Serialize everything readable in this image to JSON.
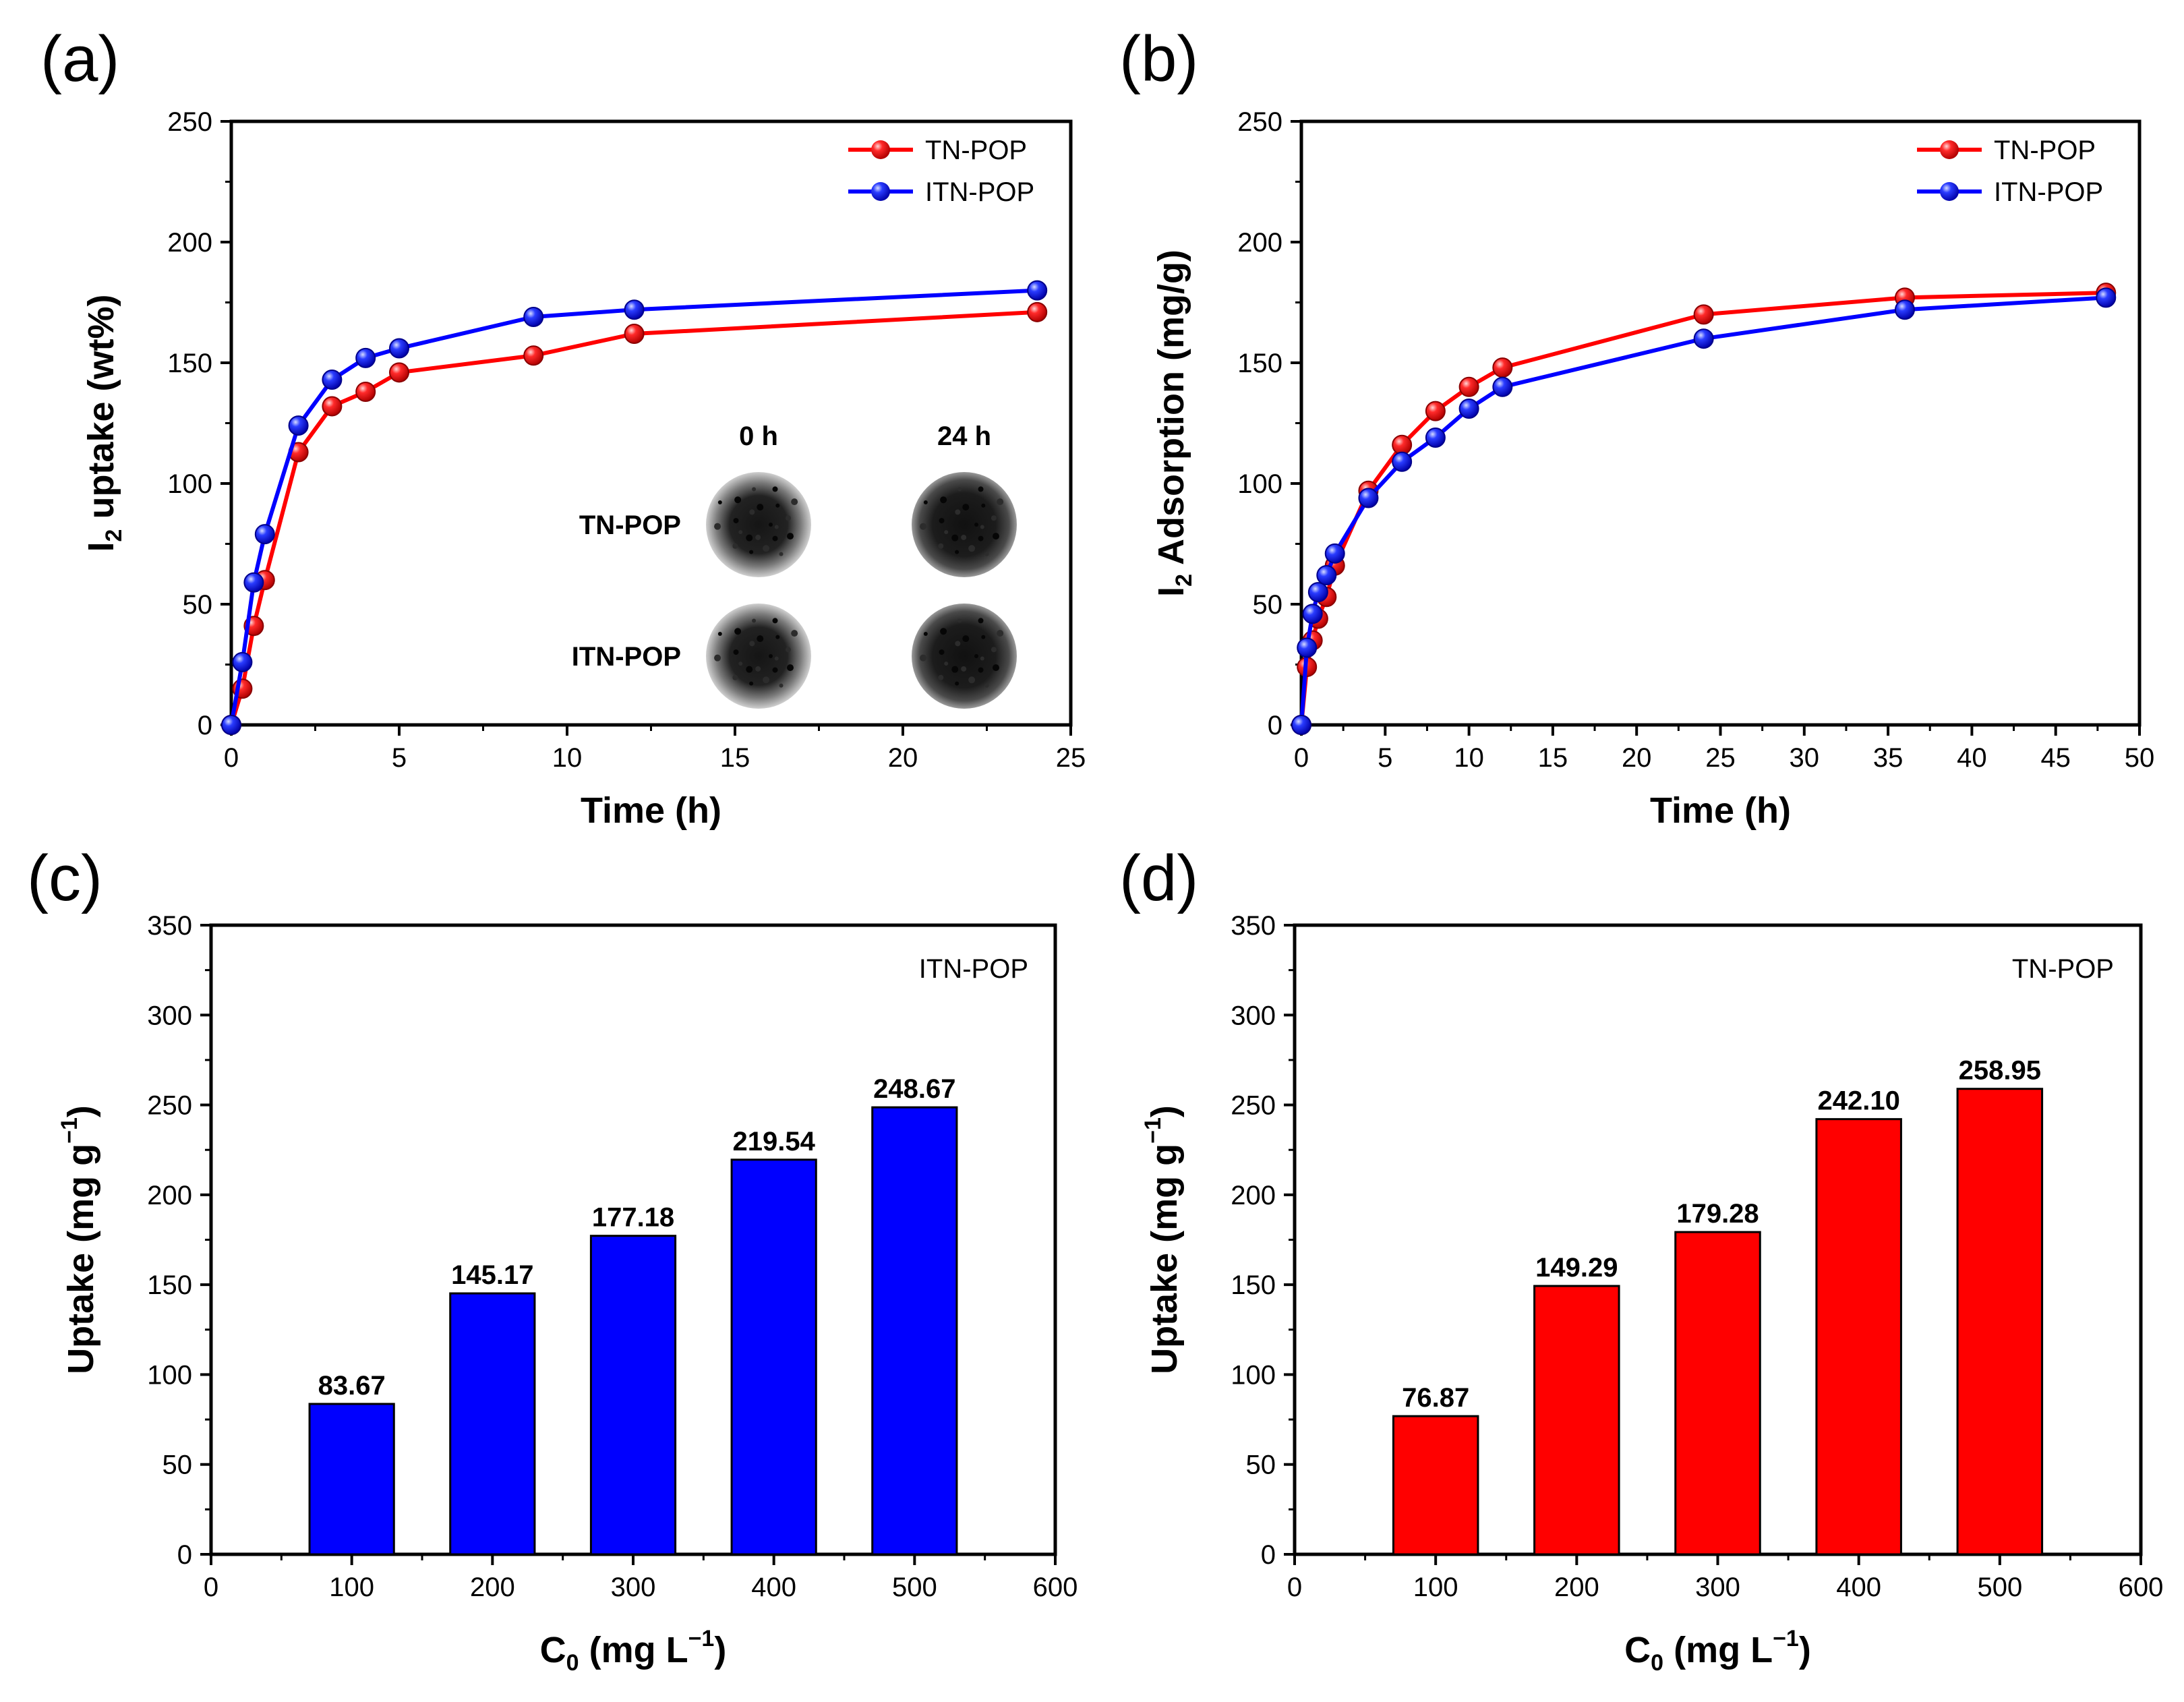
{
  "chart_data": [
    {
      "panel": "(a)",
      "type": "line",
      "xlabel": "Time (h)",
      "ylabel": "I",
      "ylabel_sub": "2",
      "ylabel_rest": " uptake (wt%)",
      "xlim": [
        0,
        25
      ],
      "ylim": [
        0,
        250
      ],
      "xticks": [
        0,
        5,
        10,
        15,
        20,
        25
      ],
      "yticks": [
        0,
        50,
        100,
        150,
        200,
        250
      ],
      "legend_position": "top-right",
      "series": [
        {
          "name": "TN-POP",
          "color": "#ff0000",
          "x": [
            0,
            0.33,
            0.67,
            1,
            2,
            3,
            4,
            5,
            9,
            12,
            24
          ],
          "y": [
            0,
            15,
            41,
            60,
            113,
            132,
            138,
            146,
            153,
            162,
            171
          ]
        },
        {
          "name": "ITN-POP",
          "color": "#0000ff",
          "x": [
            0,
            0.33,
            0.67,
            1,
            2,
            3,
            4,
            5,
            9,
            12,
            24
          ],
          "y": [
            0,
            26,
            59,
            79,
            124,
            143,
            152,
            156,
            169,
            172,
            180
          ]
        }
      ],
      "inset": {
        "col_labels": [
          "0 h",
          "24 h"
        ],
        "row_labels": [
          "TN-POP",
          "ITN-POP"
        ]
      }
    },
    {
      "panel": "(b)",
      "type": "line",
      "xlabel": "Time (h)",
      "ylabel": "I",
      "ylabel_sub": "2",
      "ylabel_rest": " Adsorption (mg/g)",
      "xlim": [
        0,
        50
      ],
      "ylim": [
        0,
        250
      ],
      "xticks": [
        0,
        5,
        10,
        15,
        20,
        25,
        30,
        35,
        40,
        45,
        50
      ],
      "yticks": [
        0,
        50,
        100,
        150,
        200,
        250
      ],
      "legend_position": "top-right",
      "series": [
        {
          "name": "TN-POP",
          "color": "#ff0000",
          "x": [
            0,
            0.33,
            0.67,
            1,
            1.5,
            2,
            4,
            6,
            8,
            10,
            12,
            24,
            36,
            48
          ],
          "y": [
            0,
            24,
            35,
            44,
            53,
            66,
            97,
            116,
            130,
            140,
            148,
            170,
            177,
            179
          ]
        },
        {
          "name": "ITN-POP",
          "color": "#0000ff",
          "x": [
            0,
            0.33,
            0.67,
            1,
            1.5,
            2,
            4,
            6,
            8,
            10,
            12,
            24,
            36,
            48
          ],
          "y": [
            0,
            32,
            46,
            55,
            62,
            71,
            94,
            109,
            119,
            131,
            140,
            160,
            172,
            177
          ]
        }
      ]
    },
    {
      "panel": "(c)",
      "type": "bar",
      "xlabel": "C",
      "xlabel_sub": "0",
      "xlabel_rest": " (mg L",
      "xlabel_sup": "−1",
      "xlabel_end": ")",
      "ylabel": "Uptake (mg g",
      "ylabel_sup": "−1",
      "ylabel_end": ")",
      "xlim": [
        0,
        600
      ],
      "ylim": [
        0,
        350
      ],
      "xticks": [
        0,
        100,
        200,
        300,
        400,
        500,
        600
      ],
      "yticks": [
        0,
        50,
        100,
        150,
        200,
        250,
        300,
        350
      ],
      "tag": "ITN-POP",
      "color": "#0000ff",
      "x": [
        100,
        200,
        300,
        400,
        500
      ],
      "values": [
        83.67,
        145.17,
        177.18,
        219.54,
        248.67
      ],
      "value_labels": [
        "83.67",
        "145.17",
        "177.18",
        "219.54",
        "248.67"
      ]
    },
    {
      "panel": "(d)",
      "type": "bar",
      "xlabel": "C",
      "xlabel_sub": "0",
      "xlabel_rest": " (mg L",
      "xlabel_sup": "−1",
      "xlabel_end": ")",
      "ylabel": "Uptake (mg g",
      "ylabel_sup": "−1",
      "ylabel_end": ")",
      "xlim": [
        0,
        600
      ],
      "ylim": [
        0,
        350
      ],
      "xticks": [
        0,
        100,
        200,
        300,
        400,
        500,
        600
      ],
      "yticks": [
        0,
        50,
        100,
        150,
        200,
        250,
        300,
        350
      ],
      "tag": "TN-POP",
      "color": "#ff0000",
      "x": [
        100,
        200,
        300,
        400,
        500
      ],
      "values": [
        76.87,
        149.29,
        179.28,
        242.1,
        258.95
      ],
      "value_labels": [
        "76.87",
        "149.29",
        "179.28",
        "242.10",
        "258.95"
      ]
    }
  ]
}
